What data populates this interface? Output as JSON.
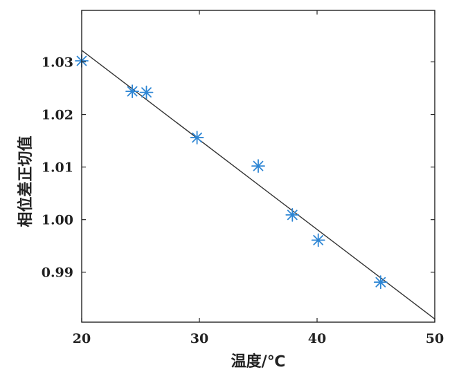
{
  "chart_data": {
    "type": "scatter",
    "xlabel": "温度/℃",
    "ylabel": "相位差正切值",
    "xlim": [
      20,
      50
    ],
    "ylim": [
      0.9805,
      1.0398
    ],
    "x_ticks": [
      20,
      30,
      40,
      50
    ],
    "x_tick_labels": [
      "20",
      "30",
      "40",
      "50"
    ],
    "y_ticks": [
      0.99,
      1.0,
      1.01,
      1.02,
      1.03
    ],
    "y_tick_labels": [
      "0.99",
      "1.00",
      "1.01",
      "1.02",
      "1.03"
    ],
    "grid": false,
    "legend": "none",
    "series": [
      {
        "type": "scatter",
        "marker": "asterisk",
        "color": "#2e86d4",
        "points": [
          {
            "x": 20.0,
            "y": 1.0302
          },
          {
            "x": 24.3,
            "y": 1.0244
          },
          {
            "x": 25.5,
            "y": 1.0242
          },
          {
            "x": 29.8,
            "y": 1.0156
          },
          {
            "x": 35.0,
            "y": 1.0102
          },
          {
            "x": 37.9,
            "y": 1.0009
          },
          {
            "x": 40.1,
            "y": 0.9961
          },
          {
            "x": 45.4,
            "y": 0.9881
          }
        ]
      },
      {
        "type": "line",
        "color": "#333333",
        "points": [
          {
            "x": 20.0,
            "y": 1.0322
          },
          {
            "x": 50.0,
            "y": 0.9811
          }
        ]
      }
    ]
  }
}
